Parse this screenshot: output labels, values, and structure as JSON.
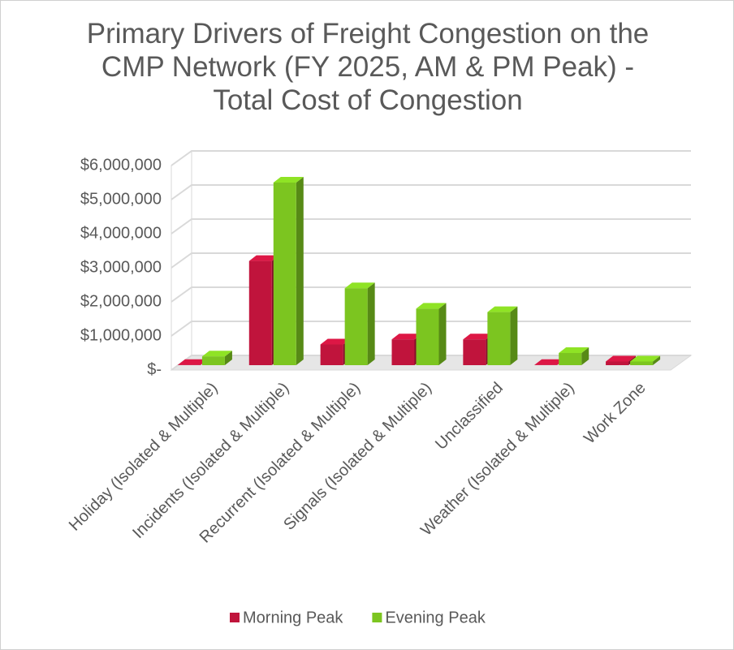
{
  "chart_data": {
    "type": "bar3d",
    "title": "Primary Drivers of Freight Congestion on the CMP Network (FY 2025, AM & PM Peak) - Total Cost of Congestion",
    "categories": [
      "Holiday (Isolated & Multiple)",
      "Incidents (Isolated & Multiple)",
      "Recurrent (Isolated & Multiple)",
      "Signals (Isolated & Multiple)",
      "Unclassified",
      "Weather (Isolated & Multiple)",
      "Work Zone"
    ],
    "series": [
      {
        "name": "Morning Peak",
        "color": "#c0143c",
        "values": [
          150000,
          3200000,
          750000,
          900000,
          900000,
          150000,
          250000
        ]
      },
      {
        "name": "Evening Peak",
        "color": "#7cc520",
        "values": [
          400000,
          5500000,
          2400000,
          1800000,
          1700000,
          500000,
          250000
        ]
      }
    ],
    "ylim": [
      0,
      6000000
    ],
    "yticks": [
      {
        "value": 0,
        "label": "$-"
      },
      {
        "value": 1000000,
        "label": "$1,000,000"
      },
      {
        "value": 2000000,
        "label": "$2,000,000"
      },
      {
        "value": 3000000,
        "label": "$3,000,000"
      },
      {
        "value": 4000000,
        "label": "$4,000,000"
      },
      {
        "value": 5000000,
        "label": "$5,000,000"
      },
      {
        "value": 6000000,
        "label": "$6,000,000"
      }
    ],
    "grid": true,
    "legend": "bottom"
  }
}
